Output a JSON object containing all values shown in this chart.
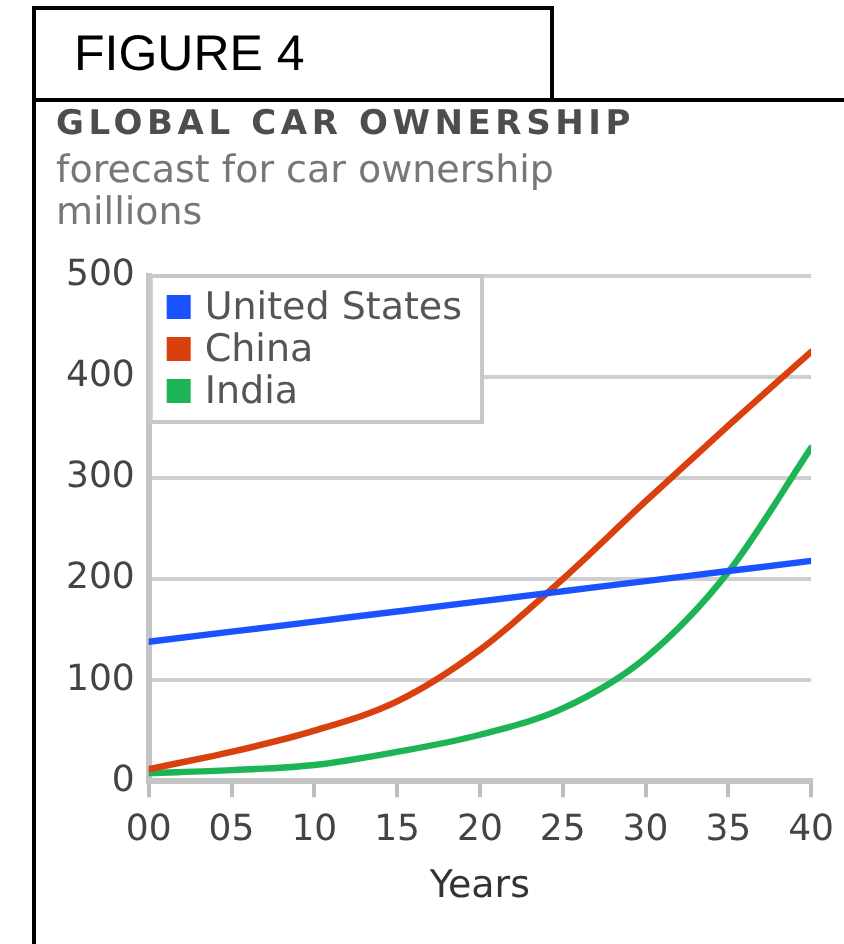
{
  "chart_data": {
    "type": "line",
    "title": "GLOBAL CAR OWNERSHIP",
    "subtitle": "forecast for car ownership",
    "ylabel": "millions",
    "xlabel": "Years",
    "annotations": [
      "FIGURE 4"
    ],
    "x": [
      0,
      5,
      10,
      15,
      20,
      25,
      30,
      35,
      40
    ],
    "series": [
      {
        "name": "United States",
        "color": "#1a52ff",
        "values": [
          138,
          148,
          158,
          168,
          178,
          188,
          198,
          208,
          218
        ]
      },
      {
        "name": "China",
        "color": "#d9400e",
        "values": [
          12,
          29,
          50,
          79,
          130,
          200,
          277,
          352,
          425
        ]
      },
      {
        "name": "India",
        "color": "#1db455",
        "values": [
          8,
          11,
          16,
          29,
          46,
          72,
          122,
          207,
          330
        ]
      }
    ],
    "xlim": [
      0,
      40
    ],
    "xticks": [
      {
        "value": 0,
        "label": "00"
      },
      {
        "value": 5,
        "label": "05"
      },
      10,
      15,
      20,
      25,
      30,
      35,
      40
    ],
    "ylim": [
      0,
      500
    ],
    "yticks": [
      0,
      100,
      200,
      300,
      400,
      500
    ],
    "grid": "y",
    "legend": "top left",
    "marker": "none",
    "line_style": "solid"
  }
}
